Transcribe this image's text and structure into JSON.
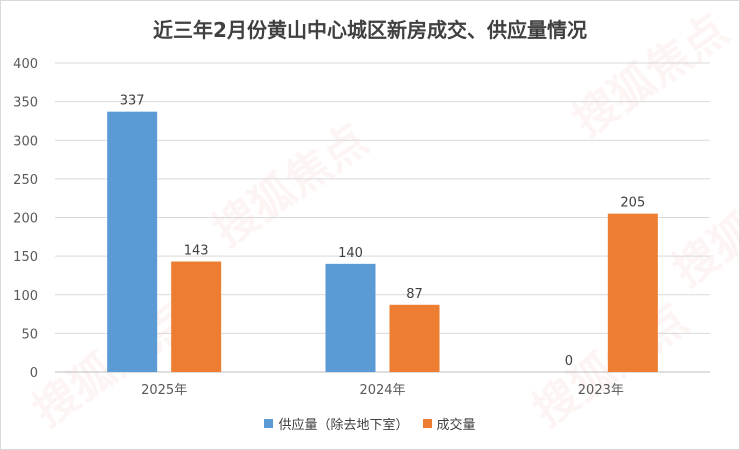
{
  "chart_data": {
    "type": "bar",
    "title": "近三年2月份黄山中心城区新房成交、供应量情况",
    "categories": [
      "2025年",
      "2024年",
      "2023年"
    ],
    "series": [
      {
        "name": "供应量（除去地下室）",
        "values": [
          337,
          140,
          0
        ],
        "color": "#5b9bd5"
      },
      {
        "name": "成交量",
        "values": [
          143,
          87,
          205
        ],
        "color": "#ed7d31"
      }
    ],
    "ylim": [
      0,
      400
    ],
    "yticks": [
      0,
      50,
      100,
      150,
      200,
      250,
      300,
      350,
      400
    ],
    "grid": true,
    "legend_position": "bottom"
  },
  "watermark": "搜狐焦点"
}
